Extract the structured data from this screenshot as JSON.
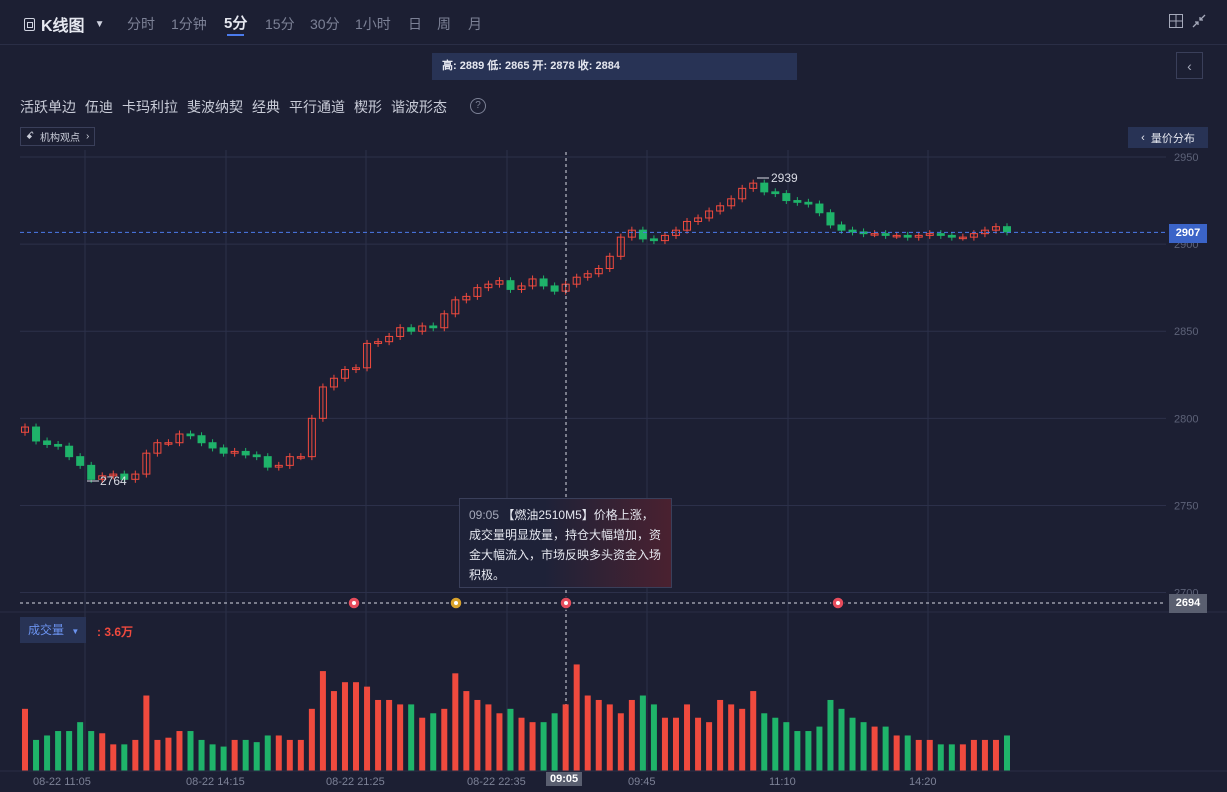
{
  "header": {
    "title": "K线图",
    "timeframes": [
      "分时",
      "1分钟",
      "5分",
      "15分",
      "30分",
      "1小时",
      "日",
      "周",
      "月"
    ],
    "active_timeframe": "5分"
  },
  "ohlc_bar": "高: 2889 低: 2865 开: 2878 收: 2884",
  "patterns": [
    "活跃单边",
    "伍迪",
    "卡玛利拉",
    "斐波纳契",
    "经典",
    "平行通道",
    "楔形",
    "谐波形态"
  ],
  "institution_label": "机构观点",
  "volume_price_button": "量价分布",
  "price_axis": {
    "labels": [
      "2950",
      "2900",
      "2850",
      "2800",
      "2750",
      "2700"
    ],
    "current_price": "2907",
    "crosshair_price": "2694"
  },
  "annotations": {
    "high": "2939",
    "low": "2764"
  },
  "tooltip": {
    "time": "09:05",
    "text": "【燃油2510M5】价格上涨，成交量明显放量，持仓大幅增加，资金大幅流入，市场反映多头资金入场积极。"
  },
  "volume": {
    "label": "成交量",
    "value": ": 3.6万"
  },
  "x_labels": [
    "08-22 11:05",
    "08-22 14:15",
    "08-22 21:25",
    "08-22 22:35",
    "09:05",
    "09:45",
    "11:10",
    "14:20"
  ],
  "active_x_label": "09:05",
  "colors": {
    "up": "#f04a3e",
    "down": "#1fb36a",
    "bg": "#1c1f33",
    "accent": "#4b7bec"
  },
  "chart_data": {
    "type": "candlestick",
    "interval": "5分",
    "ylim": [
      2694,
      2950
    ],
    "candles_close": [
      2795,
      2787,
      2785,
      2784,
      2778,
      2773,
      2765,
      2767,
      2768,
      2765,
      2768,
      2780,
      2786,
      2786,
      2791,
      2790,
      2786,
      2783,
      2780,
      2781,
      2779,
      2778,
      2772,
      2773,
      2778,
      2778,
      2800,
      2818,
      2823,
      2828,
      2829,
      2843,
      2844,
      2847,
      2852,
      2850,
      2853,
      2852,
      2860,
      2868,
      2870,
      2875,
      2877,
      2879,
      2874,
      2876,
      2880,
      2876,
      2873,
      2877,
      2881,
      2883,
      2886,
      2893,
      2904,
      2908,
      2903,
      2902,
      2905,
      2908,
      2913,
      2915,
      2919,
      2922,
      2926,
      2932,
      2935,
      2930,
      2929,
      2925,
      2924,
      2923,
      2918,
      2911,
      2908,
      2907,
      2906,
      2906,
      2905,
      2905,
      2904,
      2905,
      2906,
      2905,
      2904,
      2904,
      2906,
      2908,
      2910,
      2907
    ],
    "volume": [
      28,
      14,
      16,
      18,
      18,
      22,
      18,
      17,
      12,
      12,
      14,
      34,
      14,
      15,
      18,
      18,
      14,
      12,
      11,
      14,
      14,
      13,
      16,
      16,
      14,
      14,
      28,
      45,
      36,
      40,
      40,
      38,
      32,
      32,
      30,
      30,
      24,
      26,
      28,
      44,
      36,
      32,
      30,
      26,
      28,
      24,
      22,
      22,
      26,
      30,
      48,
      34,
      32,
      30,
      26,
      32,
      34,
      30,
      24,
      24,
      30,
      24,
      22,
      32,
      30,
      28,
      36,
      26,
      24,
      22,
      18,
      18,
      20,
      32,
      28,
      24,
      22,
      20,
      20,
      16,
      16,
      14,
      14,
      12,
      12,
      12,
      14,
      14,
      14,
      16
    ]
  }
}
